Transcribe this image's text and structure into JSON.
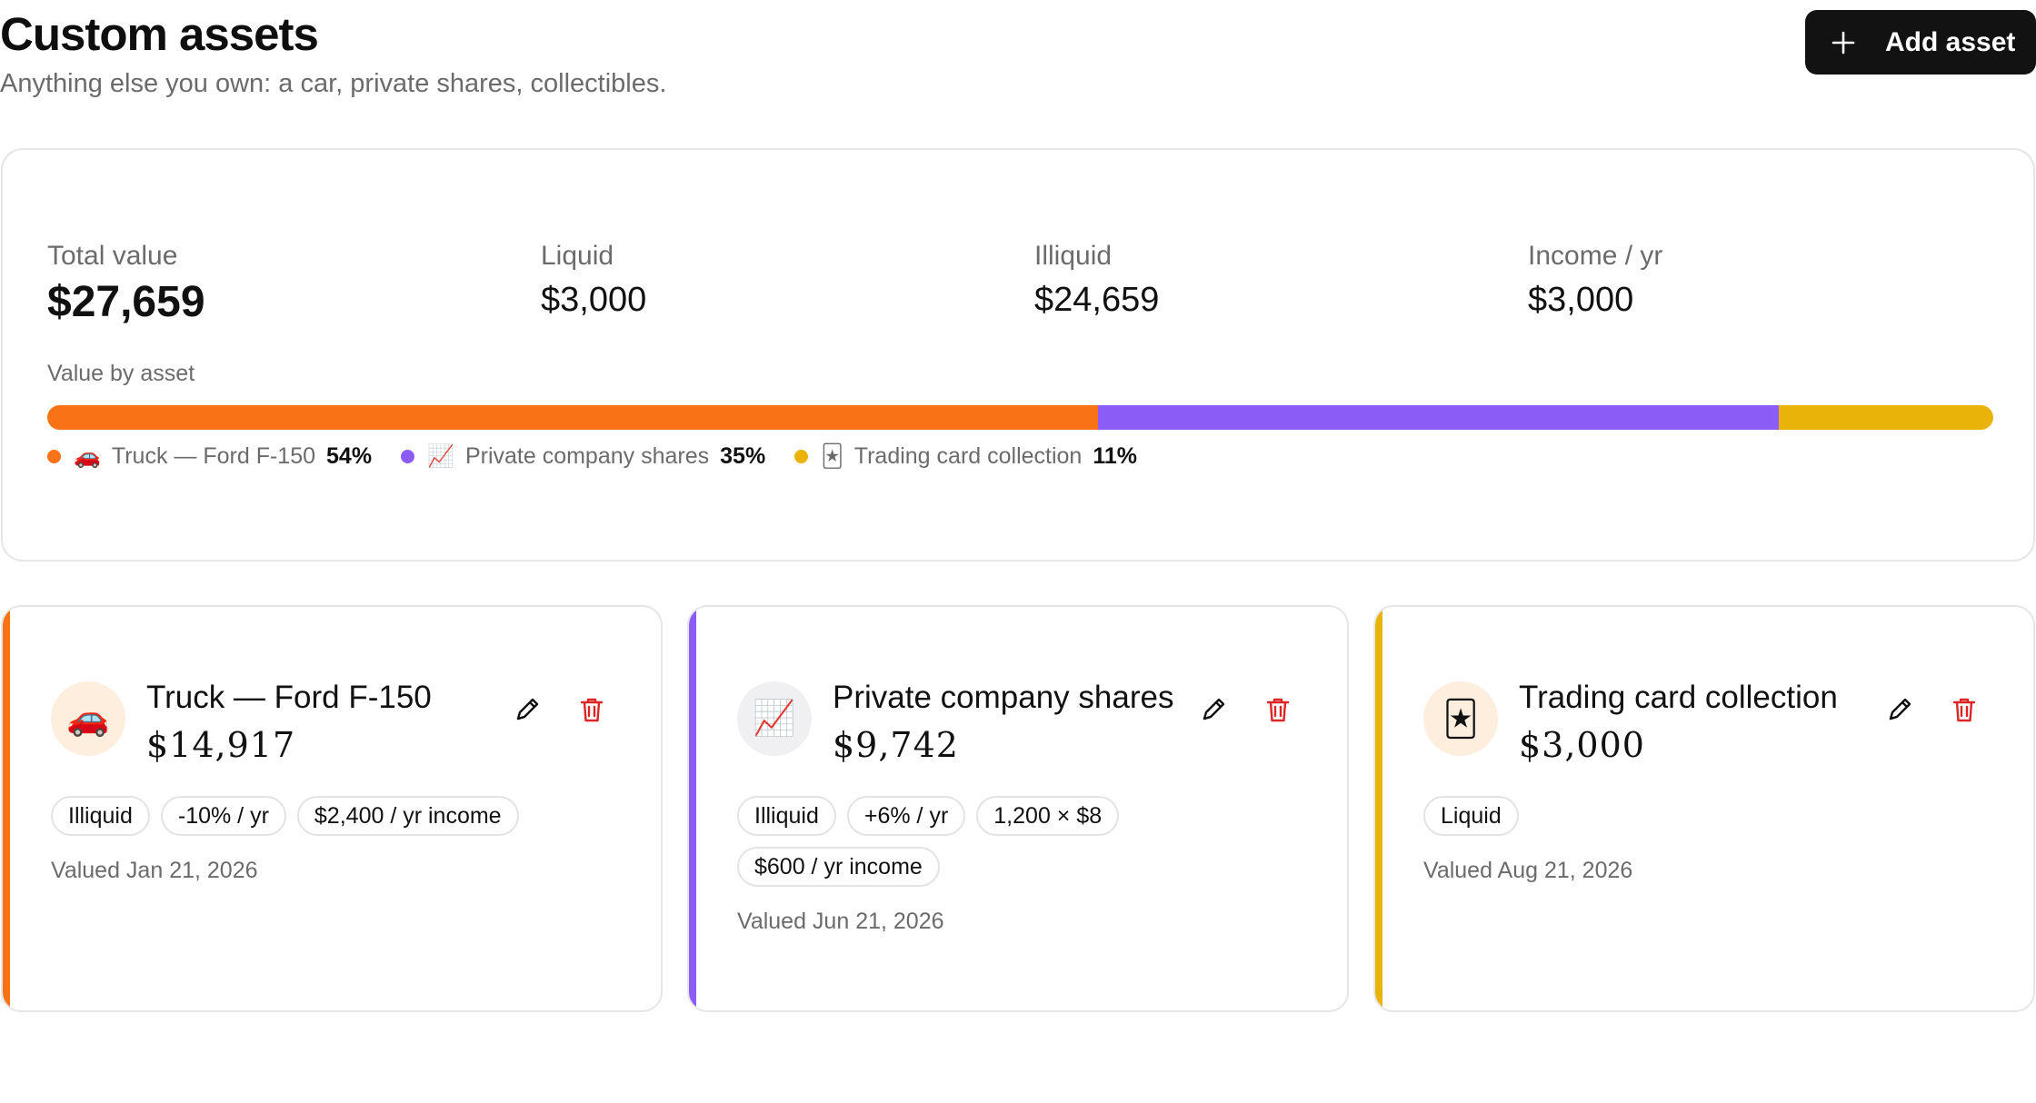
{
  "header": {
    "title": "Custom assets",
    "subtitle": "Anything else you own: a car, private shares, collectibles.",
    "add_button_label": "Add asset"
  },
  "summary": {
    "total_label": "Total value",
    "total_value": "$27,659",
    "liquid_label": "Liquid",
    "liquid_value": "$3,000",
    "illiquid_label": "Illiquid",
    "illiquid_value": "$24,659",
    "income_label": "Income / yr",
    "income_value": "$3,000",
    "bar_title": "Value by asset",
    "breakdown": [
      {
        "name": "Truck — Ford F-150",
        "emoji": "🚗",
        "pct_label": "54%",
        "share": 0.54,
        "color": "#f97316"
      },
      {
        "name": "Private company shares",
        "emoji": "📈",
        "pct_label": "35%",
        "share": 0.35,
        "color": "#8b5cf6"
      },
      {
        "name": "Trading card collection",
        "emoji": "🃏",
        "pct_label": "11%",
        "share": 0.11,
        "color": "#eab308"
      }
    ]
  },
  "assets": [
    {
      "name": "Truck — Ford F-150",
      "value": "$14,917",
      "emoji": "🚗",
      "accent": "#f97316",
      "avatar_bg": "#fdeedd",
      "chips": [
        "Illiquid",
        "-10% / yr",
        "$2,400 / yr income"
      ],
      "valued": "Valued Jan 21, 2026"
    },
    {
      "name": "Private company shares",
      "value": "$9,742",
      "emoji": "📈",
      "accent": "#8b5cf6",
      "avatar_bg": "#f0f0f2",
      "chips": [
        "Illiquid",
        "+6% / yr",
        "1,200 × $8",
        "$600 / yr income"
      ],
      "valued": "Valued Jun 21, 2026"
    },
    {
      "name": "Trading card collection",
      "value": "$3,000",
      "emoji": "🃏",
      "accent": "#eab308",
      "avatar_bg": "#fdeedd",
      "chips": [
        "Liquid"
      ],
      "valued": "Valued Aug 21, 2026"
    }
  ]
}
